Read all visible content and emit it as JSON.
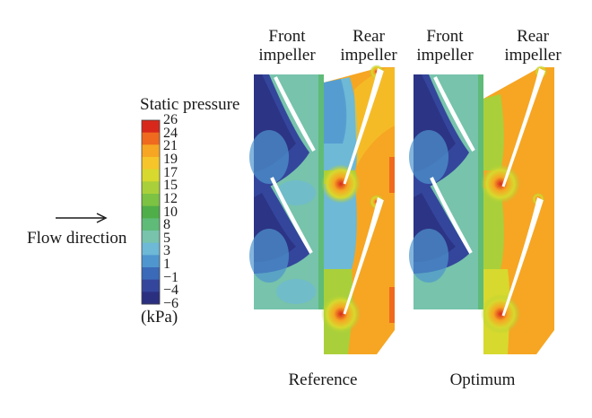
{
  "colorbar": {
    "title": "Static pressure",
    "unit": "(kPa)",
    "ticks": [
      "26",
      "24",
      "21",
      "19",
      "17",
      "15",
      "12",
      "10",
      "8",
      "5",
      "3",
      "1",
      "−1",
      "−4",
      "−6"
    ],
    "colors": [
      "#d8281c",
      "#ef6a1e",
      "#f6a623",
      "#f5c52a",
      "#d7d92e",
      "#a9d03a",
      "#7cc243",
      "#4fae48",
      "#5fbb78",
      "#77c3ac",
      "#6db9d6",
      "#4f96cf",
      "#3a6ab8",
      "#34469c",
      "#2b2f80"
    ]
  },
  "flow": {
    "label": "Flow direction"
  },
  "panels": [
    {
      "caption": "Reference",
      "front_label": "Front\nimpeller",
      "rear_label": "Rear\nimpeller"
    },
    {
      "caption": "Optimum",
      "front_label": "Front\nimpeller",
      "rear_label": "Rear\nimpeller"
    }
  ]
}
